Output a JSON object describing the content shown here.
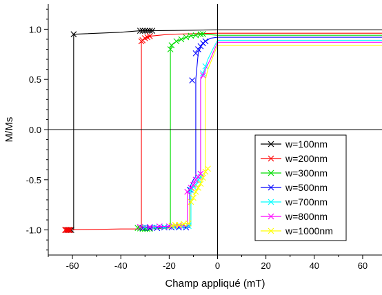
{
  "chart_data": {
    "type": "line",
    "title": "",
    "xlabel": "Champ appliqué (mT)",
    "ylabel": "M/Ms",
    "xlim": [
      -70,
      68
    ],
    "ylim": [
      -1.25,
      1.25
    ],
    "x_ticks": [
      -60,
      -40,
      -20,
      0,
      20,
      40,
      60
    ],
    "x_tick_labels": [
      "-60",
      "-40",
      "-20",
      "0",
      "20",
      "40",
      "60"
    ],
    "y_ticks": [
      -1.0,
      -0.5,
      0.0,
      0.5,
      1.0
    ],
    "y_tick_labels": [
      "-1.0",
      "-0.5",
      "0.0",
      "0.5",
      "1.0"
    ],
    "grid": false,
    "zero_lines": true,
    "legend_position": "lower-right",
    "series": [
      {
        "name": "w=100nm",
        "color": "#000000",
        "points": [
          [
            -62.5,
            -1.0
          ],
          [
            -62,
            -1.0
          ],
          [
            -61.5,
            -1.0
          ],
          [
            -61,
            -1.0
          ],
          [
            -60.5,
            -1.0
          ],
          [
            -59.5,
            -1.0
          ],
          [
            -59.5,
            0.95
          ],
          [
            -40,
            0.97
          ],
          [
            -32,
            0.985
          ],
          [
            -31,
            0.985
          ],
          [
            -30,
            0.985
          ],
          [
            -29,
            0.985
          ],
          [
            -28,
            0.985
          ],
          [
            -27,
            0.985
          ],
          [
            -10,
            0.99
          ],
          [
            0,
            0.995
          ],
          [
            68,
            0.995
          ]
        ],
        "markers": [
          [
            -62.5,
            -1.0
          ],
          [
            -62,
            -1.0
          ],
          [
            -61.5,
            -1.0
          ],
          [
            -61,
            -1.0
          ],
          [
            -60.5,
            -1.0
          ],
          [
            -59.5,
            0.95
          ],
          [
            -32,
            0.985
          ],
          [
            -31,
            0.985
          ],
          [
            -30,
            0.985
          ],
          [
            -29,
            0.985
          ],
          [
            -28,
            0.985
          ],
          [
            -27,
            0.985
          ]
        ]
      },
      {
        "name": "w=200nm",
        "color": "#ff0000",
        "points": [
          [
            -63,
            -1.0
          ],
          [
            -62.5,
            -1.0
          ],
          [
            -62,
            -1.0
          ],
          [
            -61.5,
            -1.0
          ],
          [
            -61,
            -1.0
          ],
          [
            -40,
            -0.99
          ],
          [
            -31.5,
            -0.99
          ],
          [
            -31.5,
            0.88
          ],
          [
            -31,
            0.89
          ],
          [
            -30,
            0.91
          ],
          [
            -29,
            0.92
          ],
          [
            -28,
            0.93
          ],
          [
            -20,
            0.95
          ],
          [
            0,
            0.96
          ],
          [
            68,
            0.96
          ]
        ],
        "markers": [
          [
            -63,
            -1.0
          ],
          [
            -62.5,
            -1.0
          ],
          [
            -62,
            -1.0
          ],
          [
            -61.5,
            -1.0
          ],
          [
            -61,
            -1.0
          ],
          [
            -31.5,
            0.88
          ],
          [
            -31,
            0.89
          ],
          [
            -30,
            0.91
          ],
          [
            -29,
            0.92
          ],
          [
            -28,
            0.93
          ]
        ]
      },
      {
        "name": "w=300nm",
        "color": "#00dd00",
        "points": [
          [
            -33,
            -0.98
          ],
          [
            -32,
            -0.985
          ],
          [
            -31,
            -0.99
          ],
          [
            -30,
            -0.99
          ],
          [
            -29,
            -0.99
          ],
          [
            -28,
            -0.99
          ],
          [
            -20,
            -0.98
          ],
          [
            -19.5,
            -0.98
          ],
          [
            -19.5,
            0.8
          ],
          [
            -19,
            0.84
          ],
          [
            -17,
            0.88
          ],
          [
            -15,
            0.9
          ],
          [
            -13,
            0.92
          ],
          [
            -11,
            0.935
          ],
          [
            -9,
            0.94
          ],
          [
            -7,
            0.95
          ],
          [
            -6,
            0.952
          ],
          [
            0,
            0.94
          ],
          [
            68,
            0.94
          ]
        ],
        "markers": [
          [
            -33,
            -0.98
          ],
          [
            -32,
            -0.985
          ],
          [
            -31,
            -0.99
          ],
          [
            -30,
            -0.99
          ],
          [
            -29,
            -0.99
          ],
          [
            -28,
            -0.99
          ],
          [
            -19.5,
            0.8
          ],
          [
            -19,
            0.84
          ],
          [
            -17,
            0.88
          ],
          [
            -15,
            0.9
          ],
          [
            -13,
            0.92
          ],
          [
            -11,
            0.935
          ],
          [
            -9,
            0.94
          ],
          [
            -7,
            0.95
          ],
          [
            -6,
            0.952
          ]
        ]
      },
      {
        "name": "w=500nm",
        "color": "#0000ff",
        "points": [
          [
            -31,
            -0.98
          ],
          [
            -28,
            -0.98
          ],
          [
            -25,
            -0.98
          ],
          [
            -22,
            -0.975
          ],
          [
            -19,
            -0.975
          ],
          [
            -16,
            -0.975
          ],
          [
            -13,
            -0.975
          ],
          [
            -11.5,
            -0.975
          ],
          [
            -11.5,
            -0.6
          ],
          [
            -11,
            -0.55
          ],
          [
            -10,
            -0.5
          ],
          [
            -9,
            -0.47
          ],
          [
            -9,
            0.5
          ],
          [
            -8,
            0.76
          ],
          [
            -7,
            0.82
          ],
          [
            -6,
            0.86
          ],
          [
            -5,
            0.88
          ],
          [
            -3,
            0.91
          ],
          [
            0,
            0.92
          ],
          [
            68,
            0.92
          ]
        ],
        "markers": [
          [
            -31,
            -0.98
          ],
          [
            -28,
            -0.98
          ],
          [
            -25,
            -0.98
          ],
          [
            -22,
            -0.975
          ],
          [
            -19,
            -0.975
          ],
          [
            -16,
            -0.975
          ],
          [
            -13,
            -0.975
          ],
          [
            -11.5,
            -0.6
          ],
          [
            -10.5,
            0.49
          ],
          [
            -9,
            0.76
          ],
          [
            -8,
            0.8
          ],
          [
            -7,
            0.83
          ],
          [
            -6,
            0.86
          ],
          [
            -5,
            0.88
          ]
        ]
      },
      {
        "name": "w=700nm",
        "color": "#00ffff",
        "points": [
          [
            -30,
            -0.97
          ],
          [
            -26,
            -0.97
          ],
          [
            -22,
            -0.97
          ],
          [
            -18,
            -0.97
          ],
          [
            -15,
            -0.965
          ],
          [
            -12,
            -0.96
          ],
          [
            -11,
            -0.96
          ],
          [
            -11,
            -0.6
          ],
          [
            -9,
            -0.55
          ],
          [
            -7,
            -0.47
          ],
          [
            -7,
            0.5
          ],
          [
            -6,
            0.56
          ],
          [
            -5,
            0.63
          ],
          [
            -4,
            0.7
          ],
          [
            -2,
            0.8
          ],
          [
            0,
            0.89
          ],
          [
            68,
            0.89
          ]
        ],
        "markers": [
          [
            -30,
            -0.97
          ],
          [
            -26,
            -0.97
          ],
          [
            -22,
            -0.97
          ],
          [
            -18,
            -0.97
          ],
          [
            -15,
            -0.965
          ],
          [
            -12,
            -0.96
          ],
          [
            -11,
            -0.6
          ],
          [
            -10,
            -0.57
          ],
          [
            -9,
            -0.55
          ],
          [
            -8,
            -0.5
          ],
          [
            -7,
            -0.47
          ],
          [
            -6,
            0.56
          ],
          [
            -5,
            0.63
          ]
        ]
      },
      {
        "name": "w=800nm",
        "color": "#ff00ff",
        "points": [
          [
            -32,
            -0.97
          ],
          [
            -28,
            -0.97
          ],
          [
            -24,
            -0.965
          ],
          [
            -20,
            -0.965
          ],
          [
            -16,
            -0.96
          ],
          [
            -12.5,
            -0.96
          ],
          [
            -12.5,
            -0.62
          ],
          [
            -11,
            -0.58
          ],
          [
            -10,
            -0.55
          ],
          [
            -9,
            -0.5
          ],
          [
            -8,
            -0.47
          ],
          [
            -7,
            -0.44
          ],
          [
            -7,
            0.5
          ],
          [
            -6,
            0.54
          ],
          [
            -5,
            0.6
          ],
          [
            -3,
            0.7
          ],
          [
            0,
            0.87
          ],
          [
            68,
            0.87
          ]
        ],
        "markers": [
          [
            -32,
            -0.97
          ],
          [
            -28,
            -0.97
          ],
          [
            -24,
            -0.965
          ],
          [
            -20,
            -0.965
          ],
          [
            -16,
            -0.96
          ],
          [
            -12.5,
            -0.62
          ],
          [
            -11,
            -0.58
          ],
          [
            -10,
            -0.55
          ],
          [
            -9,
            -0.5
          ],
          [
            -8,
            -0.47
          ],
          [
            -7,
            -0.44
          ],
          [
            -6,
            0.54
          ]
        ]
      },
      {
        "name": "w=1000nm",
        "color": "#ffff00",
        "points": [
          [
            -19,
            -0.96
          ],
          [
            -16,
            -0.95
          ],
          [
            -14,
            -0.94
          ],
          [
            -12,
            -0.935
          ],
          [
            -11.5,
            -0.935
          ],
          [
            -11.5,
            -0.75
          ],
          [
            -10,
            -0.68
          ],
          [
            -9,
            -0.62
          ],
          [
            -8,
            -0.58
          ],
          [
            -7,
            -0.54
          ],
          [
            -6,
            -0.48
          ],
          [
            -5,
            -0.42
          ],
          [
            -5,
            0.5
          ],
          [
            -4,
            0.6
          ],
          [
            -2,
            0.72
          ],
          [
            0,
            0.84
          ],
          [
            68,
            0.84
          ]
        ],
        "markers": [
          [
            -19,
            -0.96
          ],
          [
            -17.5,
            -0.95
          ],
          [
            -16,
            -0.95
          ],
          [
            -14,
            -0.94
          ],
          [
            -12,
            -0.935
          ],
          [
            -11,
            -0.72
          ],
          [
            -10,
            -0.68
          ],
          [
            -9,
            -0.62
          ],
          [
            -8,
            -0.58
          ],
          [
            -7,
            -0.54
          ],
          [
            -6,
            -0.48
          ],
          [
            -5,
            -0.42
          ],
          [
            -4,
            -0.39
          ]
        ]
      }
    ]
  }
}
